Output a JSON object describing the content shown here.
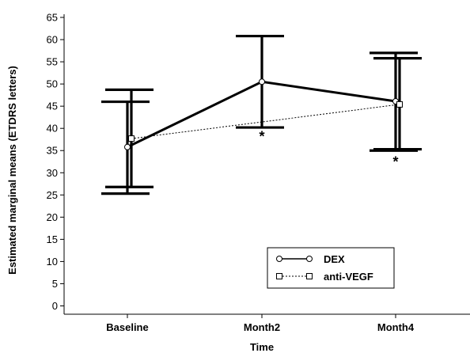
{
  "chart_data": {
    "type": "line",
    "title": "",
    "xlabel": "Time",
    "ylabel": "Estimated marginal means (ETDRS letters)",
    "categories": [
      "Baseline",
      "Month2",
      "Month4"
    ],
    "ylim": [
      0,
      65
    ],
    "yticks": [
      0,
      5,
      10,
      15,
      20,
      25,
      30,
      35,
      40,
      45,
      50,
      55,
      60,
      65
    ],
    "grid": false,
    "legend_position": "bottom-right",
    "series": [
      {
        "name": "DEX",
        "marker": "circle",
        "line_style": "solid",
        "values": [
          35.8,
          50.5,
          46.1
        ],
        "ci_low": [
          25.3,
          40.2,
          35.0
        ],
        "ci_high": [
          46.0,
          60.8,
          57.0
        ]
      },
      {
        "name": "anti-VEGF",
        "marker": "square",
        "line_style": "dashed",
        "values": [
          37.7,
          null,
          45.4
        ],
        "ci_low": [
          26.8,
          null,
          35.3
        ],
        "ci_high": [
          48.7,
          null,
          55.8
        ]
      }
    ],
    "annotations": [
      {
        "text": "*",
        "category": "Month2",
        "y": 38.5
      },
      {
        "text": "*",
        "category": "Month4",
        "y": 32.8
      }
    ],
    "colors": {
      "lines": "#000000",
      "marker_fill": "#ffffff"
    }
  }
}
